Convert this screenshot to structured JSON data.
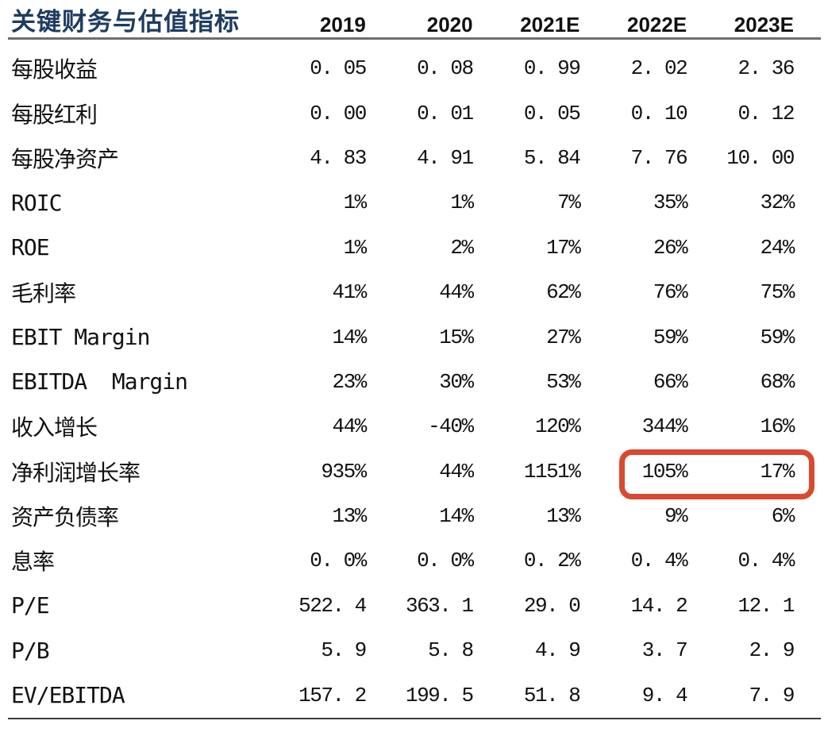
{
  "table": {
    "title": "关键财务与估值指标",
    "columns": [
      "2019",
      "2020",
      "2021E",
      "2022E",
      "2023E"
    ],
    "rows": [
      {
        "label": "每股收益",
        "values": [
          "0. 05",
          "0. 08",
          "0. 99",
          "2. 02",
          "2. 36"
        ]
      },
      {
        "label": "每股红利",
        "values": [
          "0. 00",
          "0. 01",
          "0. 05",
          "0. 10",
          "0. 12"
        ]
      },
      {
        "label": "每股净资产",
        "values": [
          "4. 83",
          "4. 91",
          "5. 84",
          "7. 76",
          "10. 00"
        ]
      },
      {
        "label": "ROIC",
        "values": [
          "1%",
          "1%",
          "7%",
          "35%",
          "32%"
        ]
      },
      {
        "label": "ROE",
        "values": [
          "1%",
          "2%",
          "17%",
          "26%",
          "24%"
        ]
      },
      {
        "label": "毛利率",
        "values": [
          "41%",
          "44%",
          "62%",
          "76%",
          "75%"
        ]
      },
      {
        "label": "EBIT Margin",
        "values": [
          "14%",
          "15%",
          "27%",
          "59%",
          "59%"
        ]
      },
      {
        "label": "EBITDA  Margin",
        "values": [
          "23%",
          "30%",
          "53%",
          "66%",
          "68%"
        ]
      },
      {
        "label": "收入增长",
        "values": [
          "44%",
          "-40%",
          "120%",
          "344%",
          "16%"
        ]
      },
      {
        "label": "净利润增长率",
        "values": [
          "935%",
          "44%",
          "1151%",
          "105%",
          "17%"
        ]
      },
      {
        "label": "资产负债率",
        "values": [
          "13%",
          "14%",
          "13%",
          "9%",
          "6%"
        ]
      },
      {
        "label": "息率",
        "values": [
          "0. 0%",
          "0. 0%",
          "0. 2%",
          "0. 4%",
          "0. 4%"
        ]
      },
      {
        "label": "P/E",
        "values": [
          "522. 4",
          "363. 1",
          "29. 0",
          "14. 2",
          "12. 1"
        ]
      },
      {
        "label": "P/B",
        "values": [
          "5. 9",
          "5. 8",
          "4. 9",
          "3. 7",
          "2. 9"
        ]
      },
      {
        "label": "EV/EBITDA",
        "values": [
          "157. 2",
          "199. 5",
          "51. 8",
          "9. 4",
          "7. 9"
        ]
      }
    ],
    "highlight": {
      "row_label": "净利润增长率",
      "columns": [
        "2022E",
        "2023E"
      ],
      "values": [
        "105%",
        "17%"
      ],
      "color": "#d84a30"
    }
  },
  "colors": {
    "title": "#1e3c61",
    "header_rule": "#6e6e6e",
    "bottom_rule": "#343a40",
    "highlight": "#d84a30",
    "text": "#111111"
  }
}
